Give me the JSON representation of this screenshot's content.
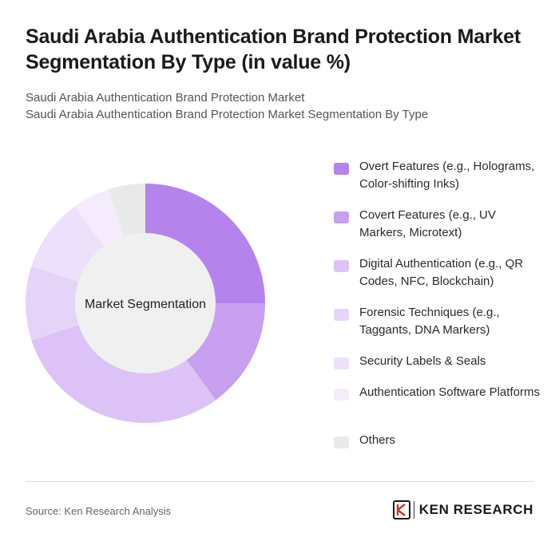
{
  "header": {
    "title": "Saudi Arabia Authentication Brand Protection Market Segmentation By Type (in value %)",
    "subtitle_1": "Saudi Arabia Authentication Brand Protection Market",
    "subtitle_2": "Saudi Arabia Authentication Brand Protection Market Segmentation By Type"
  },
  "chart_data": {
    "type": "pie",
    "variant": "donut",
    "title": "Saudi Arabia Authentication Brand Protection Market Segmentation By Type (in value %)",
    "center_label": "Market Segmentation",
    "legend_position": "right",
    "categories": [
      "Overt Features (e.g., Holograms, Color-shifting Inks)",
      "Covert Features (e.g., UV Markers, Microtext)",
      "Digital Authentication (e.g., QR Codes, NFC, Blockchain)",
      "Forensic Techniques (e.g., Taggants, DNA Markers)",
      "Security Labels & Seals",
      "Authentication Software Platforms",
      "Others"
    ],
    "values": [
      25,
      15,
      30,
      10,
      10,
      5,
      5
    ],
    "colors": [
      "#b583ec",
      "#c7a0f0",
      "#dcc2f6",
      "#e5d4f8",
      "#ede0fa",
      "#f4ecfc",
      "#e9e9e9"
    ]
  },
  "footer": {
    "source": "Source: Ken Research Analysis",
    "brand": "KEN RESEARCH"
  }
}
